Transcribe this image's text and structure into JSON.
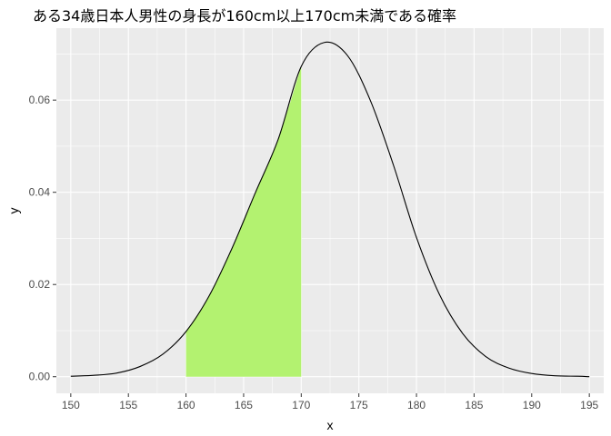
{
  "chart_data": {
    "type": "area",
    "title": "ある34歳日本人男性の身長が160cm以上170cm未満である確率",
    "xlabel": "x",
    "ylabel": "y",
    "xlim": [
      148.75,
      196.25
    ],
    "ylim": [
      -0.0036,
      0.0756
    ],
    "xticks": [
      150,
      155,
      160,
      165,
      170,
      175,
      180,
      185,
      190,
      195
    ],
    "yticks": [
      0.0,
      0.02,
      0.04,
      0.06
    ],
    "ytick_labels": [
      "0.00",
      "0.02",
      "0.04",
      "0.06"
    ],
    "grid": true,
    "background": "#EBEBEB",
    "series": [
      {
        "type": "line",
        "color": "#000000",
        "x": [
          150,
          152,
          154,
          156,
          158,
          160,
          162,
          164,
          166,
          168,
          170,
          172,
          174,
          176,
          178,
          180,
          182,
          184,
          186,
          188,
          190,
          192,
          194,
          195
        ],
        "y": [
          0.0001,
          0.0003,
          0.0008,
          0.0022,
          0.0049,
          0.0098,
          0.0175,
          0.0279,
          0.0398,
          0.0515,
          0.0673,
          0.0725,
          0.0697,
          0.0599,
          0.0459,
          0.0302,
          0.0178,
          0.0094,
          0.0044,
          0.0019,
          0.0007,
          0.0002,
          0.0001,
          0.0
        ]
      },
      {
        "type": "area",
        "color": "#B3F270",
        "range": [
          160,
          170
        ]
      }
    ]
  }
}
